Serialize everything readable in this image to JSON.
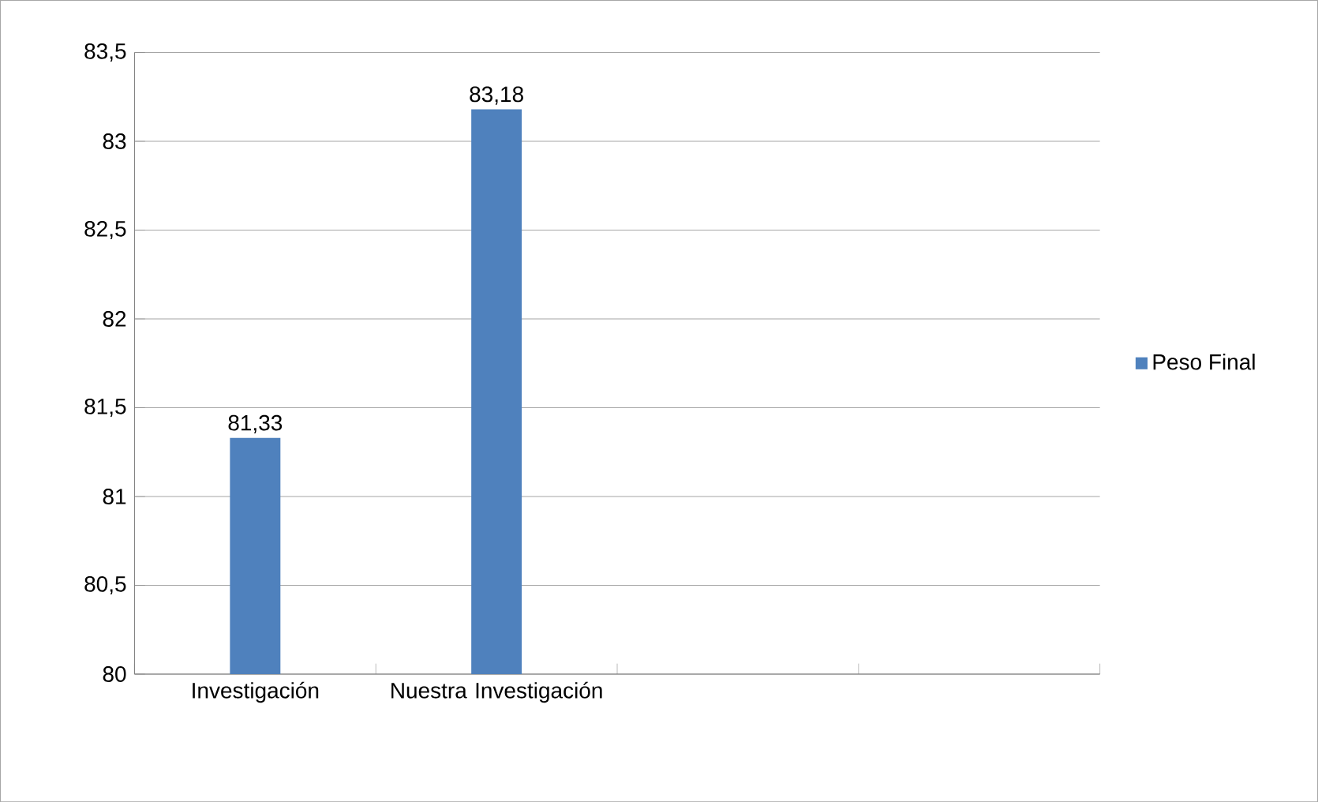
{
  "chart_data": {
    "type": "bar",
    "categories": [
      "Investigación",
      "Nuestra Investigación",
      null,
      null
    ],
    "series": [
      {
        "name": "Peso Final",
        "color": "#4f81bd",
        "values": [
          81.33,
          83.18,
          null,
          null
        ],
        "value_labels": [
          "81,33",
          "83,18",
          null,
          null
        ]
      }
    ],
    "ylim": [
      80,
      83.5
    ],
    "yticks": [
      80,
      {
        "value": 80.5,
        "label": "80,5"
      },
      81,
      {
        "value": 81.5,
        "label": "81,5"
      },
      82,
      {
        "value": 82.5,
        "label": "82,5"
      },
      83,
      {
        "value": 83.5,
        "label": "83,5"
      }
    ],
    "grid": "y",
    "legend": "right"
  }
}
